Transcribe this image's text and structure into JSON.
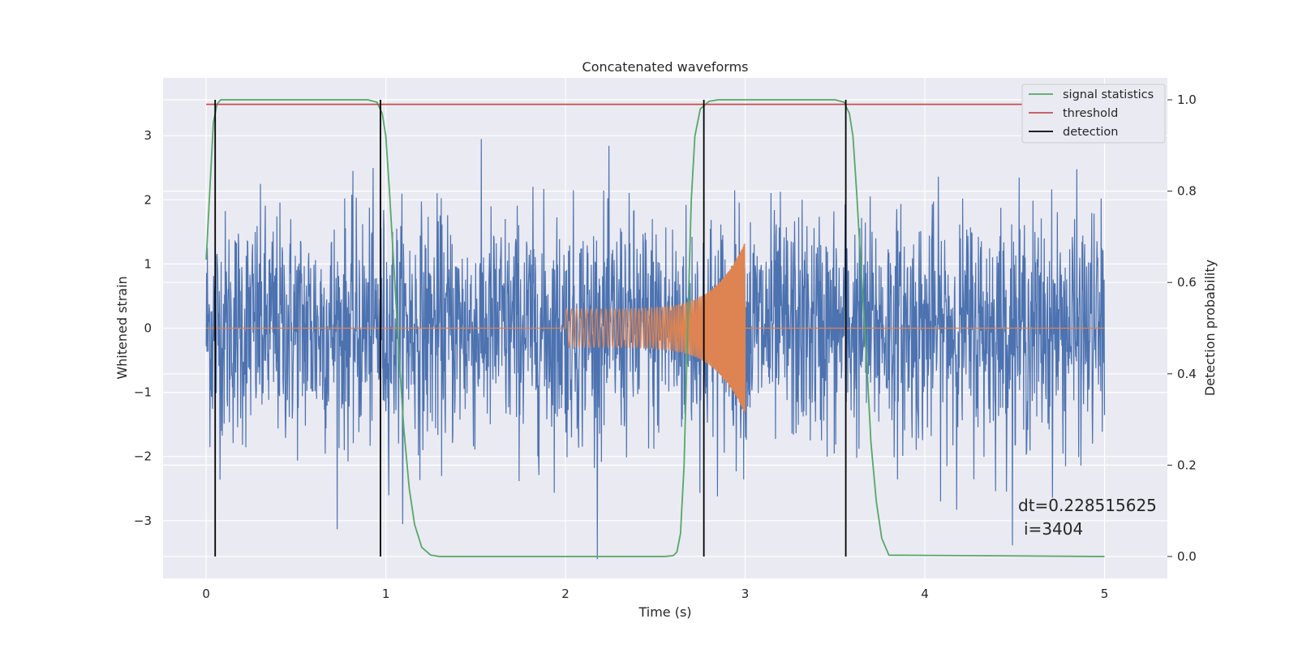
{
  "chart_data": {
    "type": "line",
    "title": "Concatenated waveforms",
    "xlabel": "Time (s)",
    "ylabel": "Whitened strain",
    "y2label": "Detection probability",
    "xlim": [
      -0.24,
      5.35
    ],
    "ylim": [
      -3.9,
      3.9
    ],
    "y2lim": [
      -0.048,
      1.048
    ],
    "xticks": [
      0,
      1,
      2,
      3,
      4,
      5
    ],
    "yticks": [
      -3,
      -2,
      -1,
      0,
      1,
      2,
      3
    ],
    "y2ticks": [
      0.0,
      0.2,
      0.4,
      0.6,
      0.8,
      1.0
    ],
    "xtick_labels": [
      "0",
      "1",
      "2",
      "3",
      "4",
      "5"
    ],
    "ytick_labels": [
      "−3",
      "−2",
      "−1",
      "0",
      "1",
      "2",
      "3"
    ],
    "y2tick_labels": [
      "0.0",
      "0.2",
      "0.4",
      "0.6",
      "0.8",
      "1.0"
    ],
    "grid": true,
    "legend_placement": "top-right",
    "legend": [
      "signal statistics",
      "threshold",
      "detection"
    ],
    "series": [
      {
        "name": "noise strain",
        "axis": "left",
        "color": "#4c72b0",
        "x_range": [
          0,
          5
        ],
        "note_values": "dense noise, typical amplitude within ±2.8, peaks near +3.2 and −3.6"
      },
      {
        "name": "injected chirp",
        "axis": "left",
        "color": "#dd8452",
        "x_range": [
          0,
          5
        ],
        "chirp_start": 2.0,
        "chirp_end": 3.0,
        "amplitude_start": 0.3,
        "amplitude_end": 1.35
      },
      {
        "name": "signal statistics",
        "axis": "right",
        "color": "#55a868",
        "x": [
          0.0,
          0.02,
          0.04,
          0.06,
          0.08,
          0.1,
          0.9,
          0.95,
          0.98,
          1.0,
          1.02,
          1.05,
          1.08,
          1.1,
          1.13,
          1.16,
          1.2,
          1.25,
          1.3,
          2.55,
          2.6,
          2.62,
          2.64,
          2.66,
          2.68,
          2.7,
          2.72,
          2.75,
          2.8,
          2.85,
          3.5,
          3.55,
          3.58,
          3.6,
          3.62,
          3.65,
          3.68,
          3.7,
          3.73,
          3.76,
          3.8,
          5.0
        ],
        "y": [
          0.65,
          0.8,
          0.95,
          0.99,
          1.0,
          1.0,
          1.0,
          0.995,
          0.97,
          0.92,
          0.8,
          0.6,
          0.4,
          0.28,
          0.15,
          0.07,
          0.02,
          0.003,
          0.0,
          0.0,
          0.002,
          0.01,
          0.05,
          0.2,
          0.5,
          0.78,
          0.92,
          0.98,
          0.997,
          1.0,
          1.0,
          0.995,
          0.97,
          0.92,
          0.8,
          0.6,
          0.4,
          0.25,
          0.12,
          0.04,
          0.003,
          0.0
        ]
      },
      {
        "name": "threshold",
        "axis": "right",
        "color": "#c44e52",
        "x": [
          0,
          5
        ],
        "y": [
          0.99,
          0.99
        ]
      },
      {
        "name": "detection",
        "axis": "right",
        "color": "#000000",
        "vlines": [
          0.05,
          0.97,
          2.77,
          3.56
        ],
        "y_span": [
          0,
          1.0
        ]
      }
    ],
    "annotations": [
      "dt=0.228515625",
      "i=3404"
    ]
  },
  "colors": {
    "background": "#eaeaf2",
    "grid": "#ffffff",
    "noise": "#4c72b0",
    "chirp": "#dd8452",
    "statistic": "#55a868",
    "threshold": "#c44e52",
    "detection": "#000000"
  }
}
